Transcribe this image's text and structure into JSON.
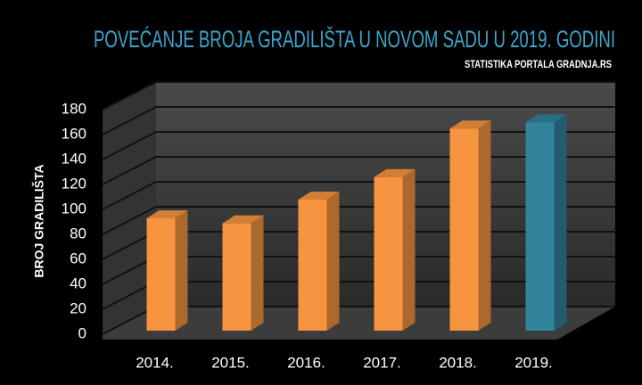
{
  "chart_data": {
    "type": "bar3d",
    "title": "POVEĆANJE BROJA GRADILIŠTA U NOVOM SADU U 2019. GODINI",
    "subtitle": "STATISTIKA PORTALA GRADNJA.RS",
    "y_label": "BROJ GRADILIŠTA",
    "categories": [
      "2014.",
      "2015.",
      "2016.",
      "2017.",
      "2018.",
      "2019."
    ],
    "values": [
      90,
      86,
      105,
      123,
      162,
      167
    ],
    "colors": [
      "#f7943f",
      "#f7943f",
      "#f7943f",
      "#f7943f",
      "#f7943f",
      "#31849b"
    ],
    "ylim": [
      0,
      180
    ],
    "yticks": [
      0,
      20,
      40,
      60,
      80,
      100,
      120,
      140,
      160,
      180
    ],
    "grid": true
  }
}
